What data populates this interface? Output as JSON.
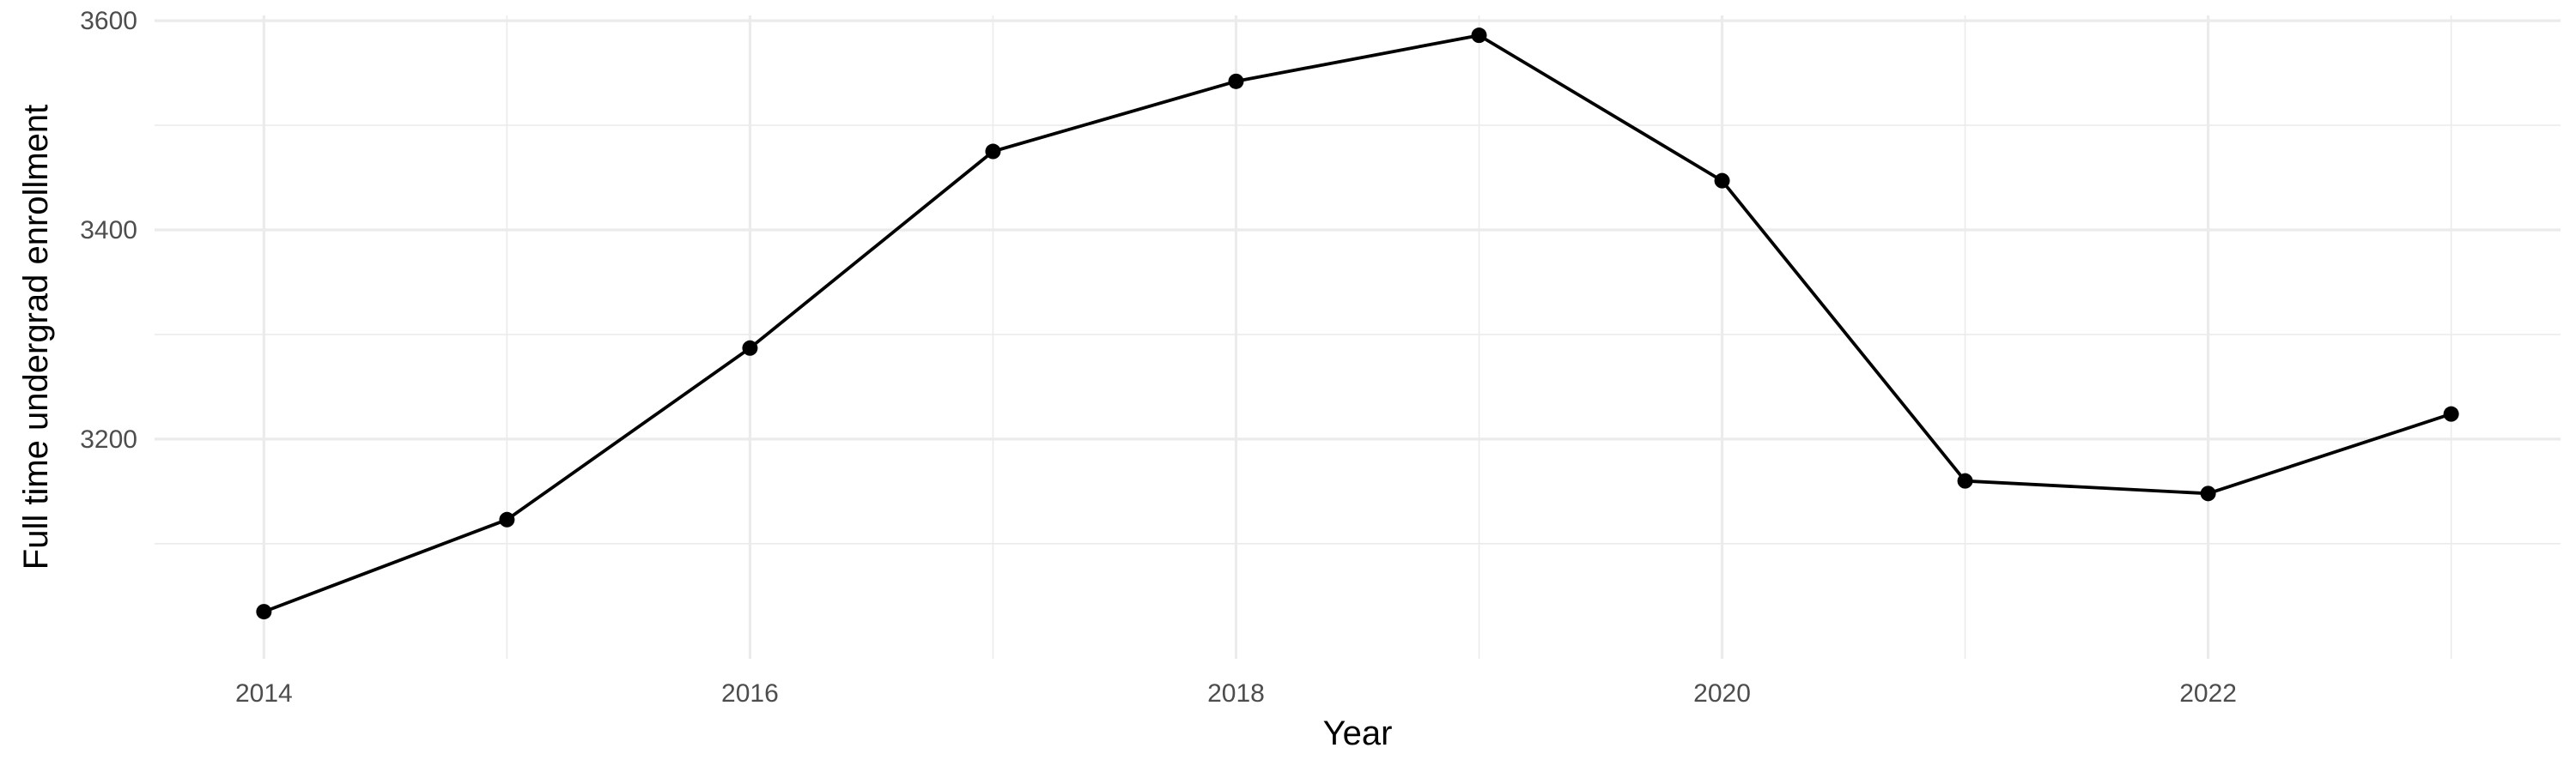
{
  "chart_data": {
    "type": "line",
    "title": "",
    "xlabel": "Year",
    "ylabel": "Full time undergrad enrollment",
    "x": [
      2014,
      2015,
      2016,
      2017,
      2018,
      2019,
      2020,
      2021,
      2022,
      2023
    ],
    "series": [
      {
        "values": [
          3035,
          3123,
          3287,
          3475,
          3542,
          3586,
          3447,
          3160,
          3148,
          3224
        ]
      }
    ],
    "xlim": [
      2013.55,
      2023.45
    ],
    "ylim": [
      2990,
      3605
    ],
    "x_ticks": [
      2014,
      2016,
      2018,
      2020,
      2022
    ],
    "x_tick_labels": [
      "2014",
      "2016",
      "2018",
      "2020",
      "2022"
    ],
    "x_minor_ticks": [
      2015,
      2017,
      2019,
      2021,
      2023
    ],
    "y_ticks": [
      3200,
      3400,
      3600
    ],
    "y_tick_labels": [
      "3200",
      "3400",
      "3600"
    ],
    "y_minor_ticks": [
      3100,
      3300,
      3500
    ],
    "grid": true,
    "legend": "none",
    "colors": {
      "line": "#000000",
      "point": "#000000",
      "grid": "#ebebeb",
      "background": "#ffffff",
      "tick_text": "#4d4d4d"
    }
  }
}
